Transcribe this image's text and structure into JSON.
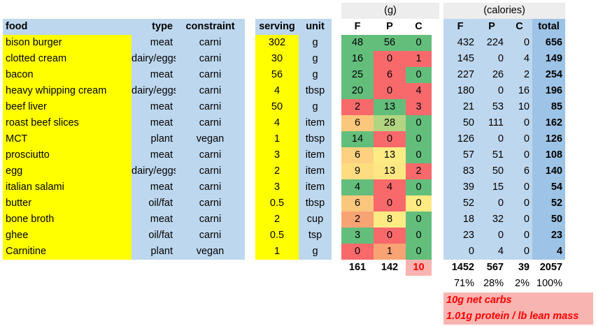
{
  "headers": {
    "food": "food",
    "type": "type",
    "constraint": "constraint",
    "serving": "serving",
    "unit": "unit",
    "grams_group": "(g)",
    "calories_group": "(calories)",
    "g_f": "F",
    "g_p": "P",
    "g_c": "C",
    "cal_f": "F",
    "cal_p": "P",
    "cal_c": "C",
    "cal_total": "total"
  },
  "rows": [
    {
      "food": "bison burger",
      "type": "meat",
      "constraint": "carni",
      "serving": "302",
      "unit": "g",
      "gf": "48",
      "gp": "56",
      "gc": "0",
      "cf": "432",
      "cp": "224",
      "cc": "0",
      "total": "656",
      "gf_color": "#63be7b",
      "gp_color": "#63be7b",
      "gc_color": "#63be7b"
    },
    {
      "food": "clotted cream",
      "type": "dairy/eggs",
      "constraint": "carni",
      "serving": "30",
      "unit": "g",
      "gf": "16",
      "gp": "0",
      "gc": "1",
      "cf": "145",
      "cp": "0",
      "cc": "4",
      "total": "149",
      "gf_color": "#63be7b",
      "gp_color": "#f8696b",
      "gc_color": "#f8696b"
    },
    {
      "food": "bacon",
      "type": "meat",
      "constraint": "carni",
      "serving": "56",
      "unit": "g",
      "gf": "25",
      "gp": "6",
      "gc": "0",
      "cf": "227",
      "cp": "26",
      "cc": "2",
      "total": "254",
      "gf_color": "#63be7b",
      "gp_color": "#f8696b",
      "gc_color": "#63be7b"
    },
    {
      "food": "heavy whipping cream",
      "type": "dairy/eggs",
      "constraint": "carni",
      "serving": "4",
      "unit": "tbsp",
      "gf": "20",
      "gp": "0",
      "gc": "4",
      "cf": "180",
      "cp": "0",
      "cc": "16",
      "total": "196",
      "gf_color": "#63be7b",
      "gp_color": "#f8696b",
      "gc_color": "#f8696b"
    },
    {
      "food": "beef liver",
      "type": "meat",
      "constraint": "carni",
      "serving": "50",
      "unit": "g",
      "gf": "2",
      "gp": "13",
      "gc": "3",
      "cf": "21",
      "cp": "53",
      "cc": "10",
      "total": "85",
      "gf_color": "#f8696b",
      "gp_color": "#63be7b",
      "gc_color": "#f8696b"
    },
    {
      "food": "roast beef slices",
      "type": "meat",
      "constraint": "carni",
      "serving": "4",
      "unit": "item",
      "gf": "6",
      "gp": "28",
      "gc": "0",
      "cf": "50",
      "cp": "111",
      "cc": "0",
      "total": "162",
      "gf_color": "#fbc77d",
      "gp_color": "#b1d580",
      "gc_color": "#63be7b"
    },
    {
      "food": "MCT",
      "type": "plant",
      "constraint": "vegan",
      "serving": "1",
      "unit": "tbsp",
      "gf": "14",
      "gp": "0",
      "gc": "0",
      "cf": "126",
      "cp": "0",
      "cc": "0",
      "total": "126",
      "gf_color": "#63be7b",
      "gp_color": "#f8696b",
      "gc_color": "#63be7b"
    },
    {
      "food": "prosciutto",
      "type": "meat",
      "constraint": "carni",
      "serving": "3",
      "unit": "item",
      "gf": "6",
      "gp": "13",
      "gc": "0",
      "cf": "57",
      "cp": "51",
      "cc": "0",
      "total": "108",
      "gf_color": "#fdd17f",
      "gp_color": "#ffeb84",
      "gc_color": "#63be7b"
    },
    {
      "food": "egg",
      "type": "dairy/eggs",
      "constraint": "carni",
      "serving": "2",
      "unit": "item",
      "gf": "9",
      "gp": "13",
      "gc": "2",
      "cf": "83",
      "cp": "50",
      "cc": "6",
      "total": "140",
      "gf_color": "#fedd81",
      "gp_color": "#fee783",
      "gc_color": "#f8696b"
    },
    {
      "food": "italian salami",
      "type": "meat",
      "constraint": "carni",
      "serving": "3",
      "unit": "item",
      "gf": "4",
      "gp": "4",
      "gc": "0",
      "cf": "39",
      "cp": "15",
      "cc": "0",
      "total": "54",
      "gf_color": "#63be7b",
      "gp_color": "#f8696b",
      "gc_color": "#63be7b"
    },
    {
      "food": "butter",
      "type": "oil/fat",
      "constraint": "carni",
      "serving": "0.5",
      "unit": "tbsp",
      "gf": "6",
      "gp": "0",
      "gc": "0",
      "cf": "52",
      "cp": "0",
      "cc": "0",
      "total": "52",
      "gf_color": "#fbc77d",
      "gp_color": "#f8696b",
      "gc_color": "#ffeb84"
    },
    {
      "food": "bone broth",
      "type": "meat",
      "constraint": "carni",
      "serving": "2",
      "unit": "cup",
      "gf": "2",
      "gp": "8",
      "gc": "0",
      "cf": "18",
      "cp": "32",
      "cc": "0",
      "total": "50",
      "gf_color": "#f8a374",
      "gp_color": "#ffeb84",
      "gc_color": "#63be7b"
    },
    {
      "food": "ghee",
      "type": "oil/fat",
      "constraint": "carni",
      "serving": "0.5",
      "unit": "tsp",
      "gf": "3",
      "gp": "0",
      "gc": "0",
      "cf": "23",
      "cp": "0",
      "cc": "0",
      "total": "23",
      "gf_color": "#63be7b",
      "gp_color": "#f8696b",
      "gc_color": "#63be7b"
    },
    {
      "food": "Carnitine",
      "type": "plant",
      "constraint": "vegan",
      "serving": "1",
      "unit": "g",
      "gf": "0",
      "gp": "1",
      "gc": "0",
      "cf": "0",
      "cp": "4",
      "cc": "0",
      "total": "4",
      "gf_color": "#f8696b",
      "gp_color": "#f8a374",
      "gc_color": "#63be7b"
    }
  ],
  "totals": {
    "gf": "161",
    "gp": "142",
    "gc": "10",
    "cf": "1452",
    "cp": "567",
    "cc": "39",
    "total": "2057",
    "gc_color": "#f8b4b0",
    "gc_text_color": "#ff0000"
  },
  "percents": {
    "f": "71%",
    "p": "28%",
    "c": "2%",
    "total": "100%"
  },
  "notes": [
    "10g net carbs",
    "1.01g protein / lb lean mass"
  ]
}
